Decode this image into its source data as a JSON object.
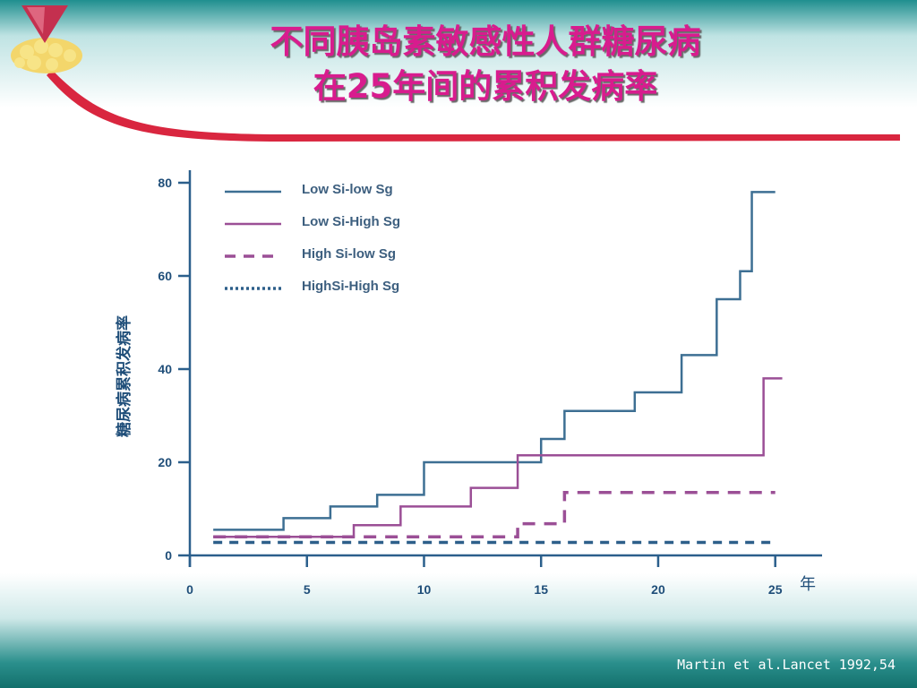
{
  "slide": {
    "title_line1": "不同胰岛素敏感性人群糖尿病",
    "title_line2": "在25年间的累积发病率",
    "source": "Martin et al.Lancet 1992,54"
  },
  "chart_data": {
    "type": "line",
    "step": true,
    "title": "",
    "xlabel": "年",
    "ylabel": "糖尿病累积发病率",
    "xlim": [
      0,
      27
    ],
    "ylim": [
      0,
      80
    ],
    "xticks": [
      "0",
      "5",
      "10",
      "15",
      "20",
      "25"
    ],
    "yticks": [
      "0",
      "20",
      "40",
      "60",
      "80"
    ],
    "legend_position": "top-left",
    "series": [
      {
        "name": "Low Si-low Sg",
        "color": "#3d6f93",
        "style": "solid",
        "x": [
          1,
          4,
          6,
          8,
          10,
          15,
          16,
          19,
          21,
          22.5,
          23.5,
          24,
          25
        ],
        "y": [
          5.5,
          8,
          10.5,
          13,
          20,
          25,
          31,
          35,
          43,
          55,
          61,
          78,
          78
        ]
      },
      {
        "name": "Low Si-High Sg",
        "color": "#9b4f96",
        "style": "solid",
        "x": [
          1,
          7,
          9,
          12,
          14,
          24.5,
          25.3
        ],
        "y": [
          4,
          6.5,
          10.5,
          14.5,
          21.5,
          38,
          38
        ]
      },
      {
        "name": "High Si-low Sg",
        "color": "#9b4f96",
        "style": "dashed",
        "x": [
          1,
          14,
          16,
          25
        ],
        "y": [
          4,
          6.8,
          13.5,
          13.5
        ]
      },
      {
        "name": "HighSi-High Sg",
        "color": "#2d5f8a",
        "style": "dotted",
        "x": [
          1,
          25
        ],
        "y": [
          2.8,
          2.8
        ]
      }
    ]
  }
}
